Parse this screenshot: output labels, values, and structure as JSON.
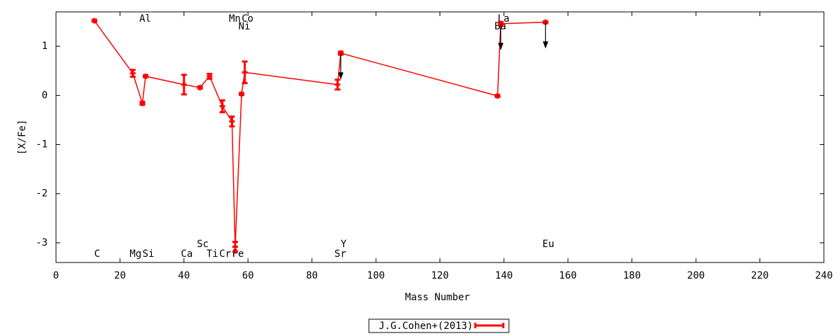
{
  "chart_data": {
    "type": "line",
    "xlabel": "Mass Number",
    "ylabel": "[X/Fe]",
    "x": [
      12,
      24,
      27,
      28,
      40,
      45,
      48,
      52,
      55,
      56,
      58,
      59,
      88,
      89,
      138,
      139,
      153
    ],
    "labels": [
      "C",
      "Mg",
      "Al",
      "Si",
      "Ca",
      "Sc",
      "Ti",
      "Cr",
      "Mn",
      "Fe",
      "Ni",
      "Co",
      "Sr",
      "Y",
      "Ba",
      "La",
      "Eu"
    ],
    "series": [
      {
        "name": "J.G.Cohen+(2013)",
        "color": "#ff0000",
        "values": [
          1.52,
          0.45,
          -0.16,
          0.39,
          0.22,
          0.16,
          0.39,
          -0.22,
          -0.53,
          -3.08,
          0.03,
          0.47,
          0.22,
          0.86,
          -0.01,
          1.46,
          1.49
        ],
        "errors": [
          0.02,
          0.07,
          0.03,
          0.02,
          0.2,
          0.02,
          0.05,
          0.12,
          0.1,
          0.1,
          0.02,
          0.22,
          0.1,
          0.03,
          0.02,
          0.03,
          0.02
        ],
        "upper_limit": [
          false,
          false,
          false,
          false,
          false,
          false,
          false,
          false,
          false,
          false,
          false,
          false,
          false,
          true,
          false,
          true,
          true
        ]
      }
    ],
    "xlim": [
      0,
      240
    ],
    "xticks": [
      0,
      20,
      40,
      60,
      80,
      100,
      120,
      140,
      160,
      180,
      200,
      220,
      240
    ],
    "ylim": [
      -3.4,
      1.7
    ],
    "yticks": [
      -3,
      -2,
      -1,
      0,
      1
    ],
    "legend": "bottom"
  }
}
